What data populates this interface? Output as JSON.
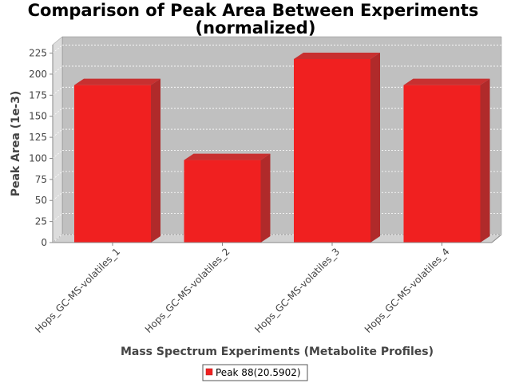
{
  "chart_data": {
    "type": "bar",
    "title_line1": "Comparison of Peak Area Between Experiments",
    "title_line2": "(normalized)",
    "xlabel": "Mass Spectrum Experiments (Metabolite Profiles)",
    "ylabel": "Peak Area (1e-3)",
    "categories": [
      "Hops_GC-MS-volatiles_1",
      "Hops_GC-MS-volatiles_2",
      "Hops_GC-MS-volatiles_3",
      "Hops_GC-MS-volatiles_4"
    ],
    "series": [
      {
        "name": "Peak 88(20.5902)",
        "values": [
          187,
          98,
          218,
          187
        ],
        "color": "#f02020"
      }
    ],
    "ylim": [
      0,
      235
    ],
    "yticks": [
      "0",
      "25",
      "50",
      "75",
      "100",
      "125",
      "150",
      "175",
      "200",
      "225"
    ],
    "grid": true,
    "legend_position": "bottom",
    "plot_background": "#c0c0c0",
    "style": "3d"
  }
}
